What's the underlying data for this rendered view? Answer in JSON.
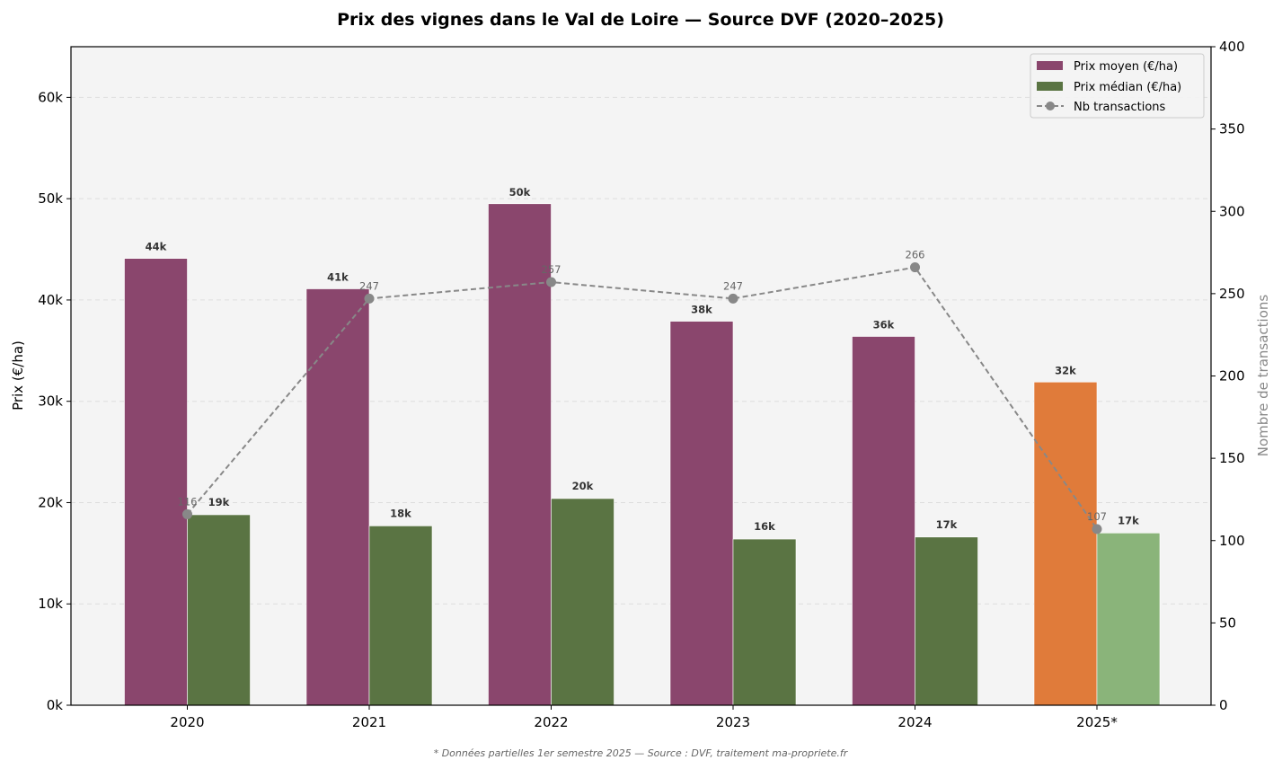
{
  "chart_data": {
    "type": "bar",
    "title": "Prix des vignes dans le Val de Loire — Source DVF (2020–2025)",
    "xlabel": "",
    "ylabel": "Prix (€/ha)",
    "y2label": "Nombre de transactions",
    "categories": [
      "2020",
      "2021",
      "2022",
      "2023",
      "2024",
      "2025*"
    ],
    "ylim": [
      0,
      65000
    ],
    "y2lim": [
      0,
      400
    ],
    "yticks": [
      0,
      10000,
      20000,
      30000,
      40000,
      50000,
      60000
    ],
    "ytick_labels": [
      "0k",
      "10k",
      "20k",
      "30k",
      "40k",
      "50k",
      "60k"
    ],
    "y2ticks": [
      0,
      50,
      100,
      150,
      200,
      250,
      300,
      350,
      400
    ],
    "grid": true,
    "legend_position": "upper right",
    "series": [
      {
        "name": "Prix moyen (€/ha)",
        "type": "bar",
        "axis": "left",
        "color": "#8A466D",
        "highlight_color": "#E07B3A",
        "values": [
          44100,
          41100,
          49500,
          37900,
          36400,
          31900
        ],
        "labels": [
          "44k",
          "41k",
          "50k",
          "38k",
          "36k",
          "32k"
        ]
      },
      {
        "name": "Prix médian (€/ha)",
        "type": "bar",
        "axis": "left",
        "color": "#5A7443",
        "highlight_color": "#8AB47A",
        "values": [
          18800,
          17700,
          20400,
          16400,
          16600,
          17000
        ],
        "labels": [
          "19k",
          "18k",
          "20k",
          "16k",
          "17k",
          "17k"
        ]
      },
      {
        "name": "Nb transactions",
        "type": "line",
        "axis": "right",
        "color": "#888888",
        "style": "dashed",
        "marker": "circle",
        "values": [
          116,
          247,
          257,
          247,
          266,
          107
        ],
        "labels": [
          "116",
          "247",
          "257",
          "247",
          "266",
          "107"
        ]
      }
    ],
    "annotations": [
      "* Données partielles 1er semestre 2025 — Source : DVF, traitement ma-propriete.fr"
    ]
  },
  "footnote": "* Données partielles 1er semestre 2025 — Source : DVF, traitement ma-propriete.fr",
  "colors": {
    "plot_bg": "#F4F4F4",
    "grid": "#DDDDDD",
    "axis": "#000000"
  }
}
